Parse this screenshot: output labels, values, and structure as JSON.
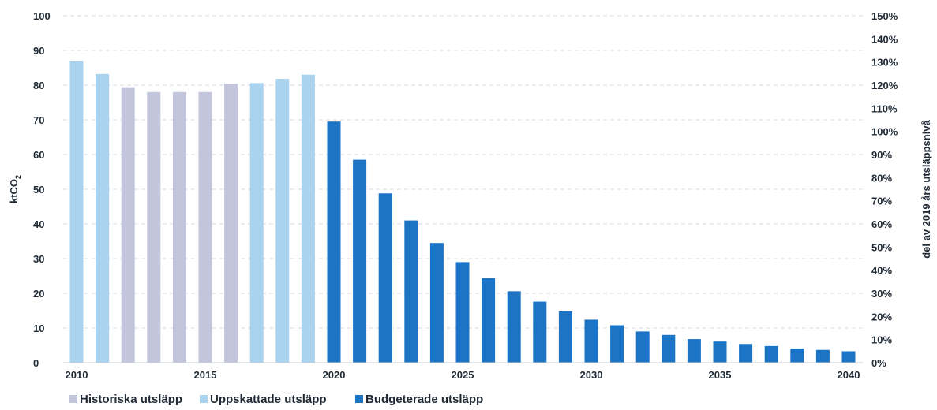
{
  "chart_data": {
    "type": "bar",
    "x": [
      2010,
      2011,
      2012,
      2013,
      2014,
      2015,
      2016,
      2017,
      2018,
      2019,
      2020,
      2021,
      2022,
      2023,
      2024,
      2025,
      2026,
      2027,
      2028,
      2029,
      2030,
      2031,
      2032,
      2033,
      2034,
      2035,
      2036,
      2037,
      2038,
      2039,
      2040
    ],
    "series": [
      {
        "name": "Historiska utsläpp",
        "color": "#c3c5dc",
        "x": [
          2010,
          2011,
          2012,
          2013,
          2014,
          2015,
          2016
        ],
        "values": [
          87,
          83.2,
          79.4,
          78,
          78,
          78,
          80.4
        ]
      },
      {
        "name": "Uppskattade utsläpp",
        "color": "#a9d3ee",
        "x": [
          2010,
          2011,
          2017,
          2018,
          2019
        ],
        "values": [
          87,
          83.2,
          80.6,
          81.8,
          83
        ]
      },
      {
        "name": "Budgeterade utsläpp",
        "color": "#1c74c6",
        "x": [
          2020,
          2021,
          2022,
          2023,
          2024,
          2025,
          2026,
          2027,
          2028,
          2029,
          2030,
          2031,
          2032,
          2033,
          2034,
          2035,
          2036,
          2037,
          2038,
          2039,
          2040
        ],
        "values": [
          69.5,
          58.5,
          48.8,
          41,
          34.5,
          29,
          24.4,
          20.6,
          17.6,
          14.8,
          12.4,
          10.8,
          9,
          8,
          6.8,
          6.1,
          5.4,
          4.8,
          4.1,
          3.7,
          3.3
        ]
      }
    ],
    "ylabel": "ktCO",
    "ylabel_subscript": "2",
    "y2label": "del av 2019 års utsläppsnivå",
    "ylim": [
      0,
      100
    ],
    "y2lim": [
      0,
      150
    ],
    "yticks": [
      "0",
      "10",
      "20",
      "30",
      "40",
      "50",
      "60",
      "70",
      "80",
      "90",
      "100"
    ],
    "y2ticks": [
      "0%",
      "10%",
      "20%",
      "30%",
      "40%",
      "50%",
      "60%",
      "70%",
      "80%",
      "90%",
      "100%",
      "110%",
      "120%",
      "130%",
      "140%",
      "150%"
    ],
    "xticks": [
      "2010",
      "2015",
      "2020",
      "2025",
      "2030",
      "2035",
      "2040"
    ],
    "grid": true,
    "legend_position": "bottom-left",
    "legend": [
      {
        "label": "Historiska utsläpp",
        "color": "#c3c5dc"
      },
      {
        "label": "Uppskattade utsläpp",
        "color": "#a9d3ee"
      },
      {
        "label": "Budgeterade utsläpp",
        "color": "#1c74c6"
      }
    ]
  }
}
